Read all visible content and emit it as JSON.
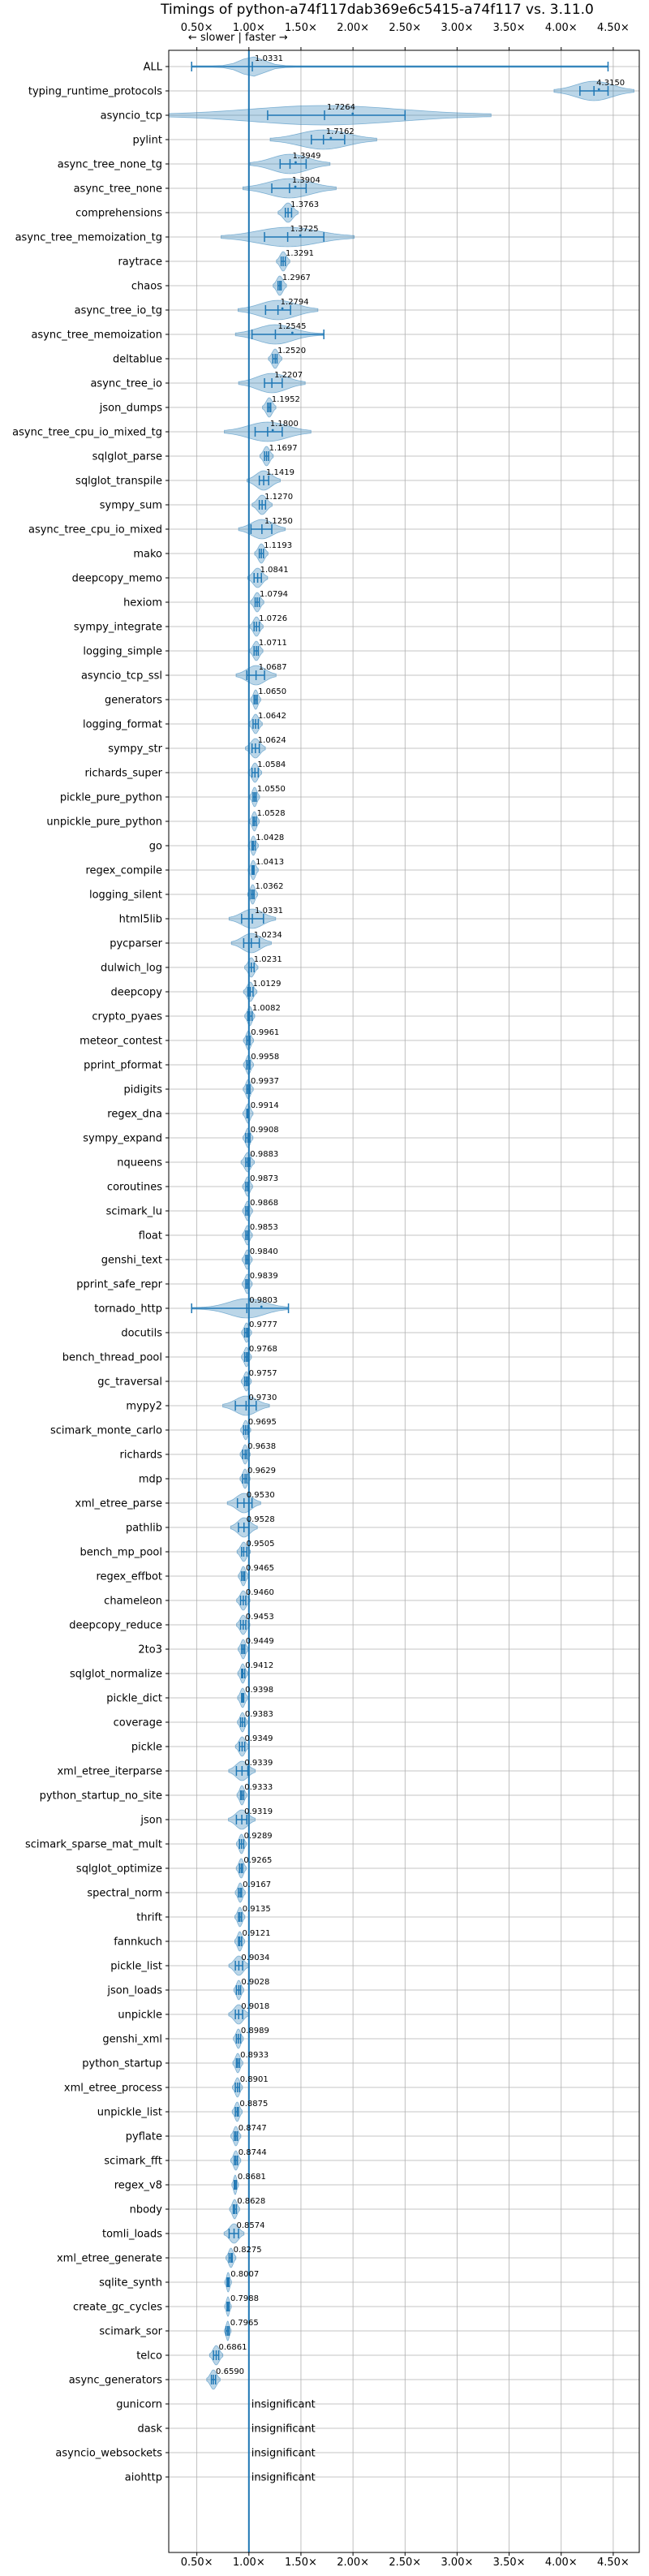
{
  "chart_data": {
    "type": "violin",
    "title": "Timings of python-a74f117dab369e6c5415-a74f117 vs. 3.11.0",
    "direction_hint": "← slower | faster →",
    "x_ticks": [
      "0.50×",
      "1.00×",
      "1.50×",
      "2.00×",
      "2.50×",
      "3.00×",
      "3.50×",
      "4.00×",
      "4.50×"
    ],
    "x_tick_values": [
      0.5,
      1.0,
      1.5,
      2.0,
      2.5,
      3.0,
      3.5,
      4.0,
      4.5
    ],
    "xlim": [
      0.23,
      4.75
    ],
    "reference_line": 1.0,
    "insignificant_label": "insignificant",
    "benchmarks": [
      {
        "name": "ALL",
        "value": 1.0331,
        "label": "1.0331",
        "lo": 0.45,
        "hi": 4.45,
        "spread": 0.08
      },
      {
        "name": "typing_runtime_protocols",
        "value": 4.315,
        "label": "4.3150",
        "lo": 4.18,
        "hi": 4.45,
        "spread": 0.12
      },
      {
        "name": "asyncio_tcp",
        "value": 1.7264,
        "label": "1.7264",
        "lo": 1.18,
        "hi": 2.5,
        "spread": 0.5
      },
      {
        "name": "pylint",
        "value": 1.7162,
        "label": "1.7162",
        "lo": 1.6,
        "hi": 1.92,
        "spread": 0.16
      },
      {
        "name": "async_tree_none_tg",
        "value": 1.3949,
        "label": "1.3949",
        "lo": 1.3,
        "hi": 1.55,
        "spread": 0.12
      },
      {
        "name": "async_tree_none",
        "value": 1.3904,
        "label": "1.3904",
        "lo": 1.22,
        "hi": 1.55,
        "spread": 0.14
      },
      {
        "name": "comprehensions",
        "value": 1.3763,
        "label": "1.3763",
        "lo": 1.35,
        "hi": 1.41,
        "spread": 0.03
      },
      {
        "name": "async_tree_memoization_tg",
        "value": 1.3725,
        "label": "1.3725",
        "lo": 1.15,
        "hi": 1.72,
        "spread": 0.2
      },
      {
        "name": "raytrace",
        "value": 1.3291,
        "label": "1.3291",
        "lo": 1.31,
        "hi": 1.35,
        "spread": 0.02
      },
      {
        "name": "chaos",
        "value": 1.2967,
        "label": "1.2967",
        "lo": 1.28,
        "hi": 1.31,
        "spread": 0.02
      },
      {
        "name": "async_tree_io_tg",
        "value": 1.2794,
        "label": "1.2794",
        "lo": 1.16,
        "hi": 1.4,
        "spread": 0.12
      },
      {
        "name": "async_tree_memoization",
        "value": 1.2545,
        "label": "1.2545",
        "lo": 1.03,
        "hi": 1.72,
        "spread": 0.12
      },
      {
        "name": "deltablue",
        "value": 1.252,
        "label": "1.2520",
        "lo": 1.23,
        "hi": 1.27,
        "spread": 0.02
      },
      {
        "name": "async_tree_io",
        "value": 1.2207,
        "label": "1.2207",
        "lo": 1.15,
        "hi": 1.32,
        "spread": 0.1
      },
      {
        "name": "json_dumps",
        "value": 1.1952,
        "label": "1.1952",
        "lo": 1.18,
        "hi": 1.21,
        "spread": 0.02
      },
      {
        "name": "async_tree_cpu_io_mixed_tg",
        "value": 1.18,
        "label": "1.1800",
        "lo": 1.06,
        "hi": 1.32,
        "spread": 0.13
      },
      {
        "name": "sqlglot_parse",
        "value": 1.1697,
        "label": "1.1697",
        "lo": 1.15,
        "hi": 1.19,
        "spread": 0.02
      },
      {
        "name": "sqlglot_transpile",
        "value": 1.1419,
        "label": "1.1419",
        "lo": 1.1,
        "hi": 1.19,
        "spread": 0.05
      },
      {
        "name": "sympy_sum",
        "value": 1.127,
        "label": "1.1270",
        "lo": 1.1,
        "hi": 1.16,
        "spread": 0.03
      },
      {
        "name": "async_tree_cpu_io_mixed",
        "value": 1.125,
        "label": "1.1250",
        "lo": 1.02,
        "hi": 1.22,
        "spread": 0.07
      },
      {
        "name": "mako",
        "value": 1.1193,
        "label": "1.1193",
        "lo": 1.1,
        "hi": 1.14,
        "spread": 0.02
      },
      {
        "name": "deepcopy_memo",
        "value": 1.0841,
        "label": "1.0841",
        "lo": 1.05,
        "hi": 1.12,
        "spread": 0.03
      },
      {
        "name": "hexiom",
        "value": 1.0794,
        "label": "1.0794",
        "lo": 1.06,
        "hi": 1.1,
        "spread": 0.02
      },
      {
        "name": "sympy_integrate",
        "value": 1.0726,
        "label": "1.0726",
        "lo": 1.05,
        "hi": 1.1,
        "spread": 0.02
      },
      {
        "name": "logging_simple",
        "value": 1.0711,
        "label": "1.0711",
        "lo": 1.05,
        "hi": 1.09,
        "spread": 0.02
      },
      {
        "name": "asyncio_tcp_ssl",
        "value": 1.0687,
        "label": "1.0687",
        "lo": 0.98,
        "hi": 1.15,
        "spread": 0.06
      },
      {
        "name": "generators",
        "value": 1.065,
        "label": "1.0650",
        "lo": 1.05,
        "hi": 1.08,
        "spread": 0.015
      },
      {
        "name": "logging_format",
        "value": 1.0642,
        "label": "1.0642",
        "lo": 1.04,
        "hi": 1.09,
        "spread": 0.02
      },
      {
        "name": "sympy_str",
        "value": 1.0624,
        "label": "1.0624",
        "lo": 1.03,
        "hi": 1.1,
        "spread": 0.03
      },
      {
        "name": "richards_super",
        "value": 1.0584,
        "label": "1.0584",
        "lo": 1.03,
        "hi": 1.09,
        "spread": 0.02
      },
      {
        "name": "pickle_pure_python",
        "value": 1.055,
        "label": "1.0550",
        "lo": 1.04,
        "hi": 1.07,
        "spread": 0.015
      },
      {
        "name": "unpickle_pure_python",
        "value": 1.0528,
        "label": "1.0528",
        "lo": 1.04,
        "hi": 1.07,
        "spread": 0.015
      },
      {
        "name": "go",
        "value": 1.0428,
        "label": "1.0428",
        "lo": 1.03,
        "hi": 1.06,
        "spread": 0.015
      },
      {
        "name": "regex_compile",
        "value": 1.0413,
        "label": "1.0413",
        "lo": 1.03,
        "hi": 1.05,
        "spread": 0.015
      },
      {
        "name": "logging_silent",
        "value": 1.0362,
        "label": "1.0362",
        "lo": 1.02,
        "hi": 1.05,
        "spread": 0.015
      },
      {
        "name": "html5lib",
        "value": 1.0331,
        "label": "1.0331",
        "lo": 0.93,
        "hi": 1.14,
        "spread": 0.07
      },
      {
        "name": "pycparser",
        "value": 1.0234,
        "label": "1.0234",
        "lo": 0.95,
        "hi": 1.1,
        "spread": 0.06
      },
      {
        "name": "dulwich_log",
        "value": 1.0231,
        "label": "1.0231",
        "lo": 1.0,
        "hi": 1.05,
        "spread": 0.02
      },
      {
        "name": "deepcopy",
        "value": 1.0129,
        "label": "1.0129",
        "lo": 0.99,
        "hi": 1.04,
        "spread": 0.02
      },
      {
        "name": "crypto_pyaes",
        "value": 1.0082,
        "label": "1.0082",
        "lo": 0.99,
        "hi": 1.03,
        "spread": 0.015
      },
      {
        "name": "meteor_contest",
        "value": 0.9961,
        "label": "0.9961",
        "lo": 0.98,
        "hi": 1.01,
        "spread": 0.015
      },
      {
        "name": "pprint_pformat",
        "value": 0.9958,
        "label": "0.9958",
        "lo": 0.98,
        "hi": 1.01,
        "spread": 0.015
      },
      {
        "name": "pidigits",
        "value": 0.9937,
        "label": "0.9937",
        "lo": 0.98,
        "hi": 1.01,
        "spread": 0.015
      },
      {
        "name": "regex_dna",
        "value": 0.9914,
        "label": "0.9914",
        "lo": 0.98,
        "hi": 1.0,
        "spread": 0.015
      },
      {
        "name": "sympy_expand",
        "value": 0.9908,
        "label": "0.9908",
        "lo": 0.97,
        "hi": 1.01,
        "spread": 0.015
      },
      {
        "name": "nqueens",
        "value": 0.9883,
        "label": "0.9883",
        "lo": 0.97,
        "hi": 1.01,
        "spread": 0.02
      },
      {
        "name": "coroutines",
        "value": 0.9873,
        "label": "0.9873",
        "lo": 0.97,
        "hi": 1.0,
        "spread": 0.015
      },
      {
        "name": "scimark_lu",
        "value": 0.9868,
        "label": "0.9868",
        "lo": 0.97,
        "hi": 1.0,
        "spread": 0.015
      },
      {
        "name": "float",
        "value": 0.9853,
        "label": "0.9853",
        "lo": 0.97,
        "hi": 1.0,
        "spread": 0.015
      },
      {
        "name": "genshi_text",
        "value": 0.984,
        "label": "0.9840",
        "lo": 0.97,
        "hi": 1.0,
        "spread": 0.015
      },
      {
        "name": "pprint_safe_repr",
        "value": 0.9839,
        "label": "0.9839",
        "lo": 0.97,
        "hi": 1.0,
        "spread": 0.015
      },
      {
        "name": "tornado_http",
        "value": 0.9803,
        "label": "0.9803",
        "lo": 0.45,
        "hi": 1.38,
        "spread": 0.12
      },
      {
        "name": "docutils",
        "value": 0.9777,
        "label": "0.9777",
        "lo": 0.96,
        "hi": 0.99,
        "spread": 0.015
      },
      {
        "name": "bench_thread_pool",
        "value": 0.9768,
        "label": "0.9768",
        "lo": 0.96,
        "hi": 0.99,
        "spread": 0.015
      },
      {
        "name": "gc_traversal",
        "value": 0.9757,
        "label": "0.9757",
        "lo": 0.96,
        "hi": 0.99,
        "spread": 0.015
      },
      {
        "name": "mypy2",
        "value": 0.973,
        "label": "0.9730",
        "lo": 0.87,
        "hi": 1.07,
        "spread": 0.07
      },
      {
        "name": "scimark_monte_carlo",
        "value": 0.9695,
        "label": "0.9695",
        "lo": 0.95,
        "hi": 0.99,
        "spread": 0.015
      },
      {
        "name": "richards",
        "value": 0.9638,
        "label": "0.9638",
        "lo": 0.94,
        "hi": 0.98,
        "spread": 0.015
      },
      {
        "name": "mdp",
        "value": 0.9629,
        "label": "0.9629",
        "lo": 0.94,
        "hi": 0.98,
        "spread": 0.015
      },
      {
        "name": "xml_etree_parse",
        "value": 0.953,
        "label": "0.9530",
        "lo": 0.89,
        "hi": 1.03,
        "spread": 0.05
      },
      {
        "name": "pathlib",
        "value": 0.9528,
        "label": "0.9528",
        "lo": 0.9,
        "hi": 1.0,
        "spread": 0.04
      },
      {
        "name": "bench_mp_pool",
        "value": 0.9505,
        "label": "0.9505",
        "lo": 0.93,
        "hi": 0.98,
        "spread": 0.02
      },
      {
        "name": "regex_effbot",
        "value": 0.9465,
        "label": "0.9465",
        "lo": 0.93,
        "hi": 0.96,
        "spread": 0.015
      },
      {
        "name": "chameleon",
        "value": 0.946,
        "label": "0.9460",
        "lo": 0.92,
        "hi": 0.97,
        "spread": 0.02
      },
      {
        "name": "deepcopy_reduce",
        "value": 0.9453,
        "label": "0.9453",
        "lo": 0.92,
        "hi": 0.97,
        "spread": 0.02
      },
      {
        "name": "2to3",
        "value": 0.9449,
        "label": "0.9449",
        "lo": 0.93,
        "hi": 0.96,
        "spread": 0.015
      },
      {
        "name": "sqlglot_normalize",
        "value": 0.9412,
        "label": "0.9412",
        "lo": 0.93,
        "hi": 0.96,
        "spread": 0.015
      },
      {
        "name": "pickle_dict",
        "value": 0.9398,
        "label": "0.9398",
        "lo": 0.93,
        "hi": 0.95,
        "spread": 0.015
      },
      {
        "name": "coverage",
        "value": 0.9383,
        "label": "0.9383",
        "lo": 0.92,
        "hi": 0.96,
        "spread": 0.015
      },
      {
        "name": "pickle",
        "value": 0.9349,
        "label": "0.9349",
        "lo": 0.91,
        "hi": 0.96,
        "spread": 0.02
      },
      {
        "name": "xml_etree_iterparse",
        "value": 0.9339,
        "label": "0.9339",
        "lo": 0.88,
        "hi": 0.99,
        "spread": 0.04
      },
      {
        "name": "python_startup_no_site",
        "value": 0.9333,
        "label": "0.9333",
        "lo": 0.92,
        "hi": 0.95,
        "spread": 0.015
      },
      {
        "name": "json",
        "value": 0.9319,
        "label": "0.9319",
        "lo": 0.88,
        "hi": 0.98,
        "spread": 0.04
      },
      {
        "name": "scimark_sparse_mat_mult",
        "value": 0.9289,
        "label": "0.9289",
        "lo": 0.91,
        "hi": 0.95,
        "spread": 0.015
      },
      {
        "name": "sqlglot_optimize",
        "value": 0.9265,
        "label": "0.9265",
        "lo": 0.91,
        "hi": 0.94,
        "spread": 0.015
      },
      {
        "name": "spectral_norm",
        "value": 0.9167,
        "label": "0.9167",
        "lo": 0.9,
        "hi": 0.93,
        "spread": 0.015
      },
      {
        "name": "thrift",
        "value": 0.9135,
        "label": "0.9135",
        "lo": 0.9,
        "hi": 0.93,
        "spread": 0.015
      },
      {
        "name": "fannkuch",
        "value": 0.9121,
        "label": "0.9121",
        "lo": 0.9,
        "hi": 0.93,
        "spread": 0.015
      },
      {
        "name": "pickle_list",
        "value": 0.9034,
        "label": "0.9034",
        "lo": 0.87,
        "hi": 0.94,
        "spread": 0.03
      },
      {
        "name": "json_loads",
        "value": 0.9028,
        "label": "0.9028",
        "lo": 0.88,
        "hi": 0.92,
        "spread": 0.015
      },
      {
        "name": "unpickle",
        "value": 0.9018,
        "label": "0.9018",
        "lo": 0.87,
        "hi": 0.94,
        "spread": 0.03
      },
      {
        "name": "genshi_xml",
        "value": 0.8989,
        "label": "0.8989",
        "lo": 0.88,
        "hi": 0.92,
        "spread": 0.015
      },
      {
        "name": "python_startup",
        "value": 0.8933,
        "label": "0.8933",
        "lo": 0.88,
        "hi": 0.91,
        "spread": 0.015
      },
      {
        "name": "xml_etree_process",
        "value": 0.8901,
        "label": "0.8901",
        "lo": 0.87,
        "hi": 0.91,
        "spread": 0.015
      },
      {
        "name": "unpickle_list",
        "value": 0.8875,
        "label": "0.8875",
        "lo": 0.87,
        "hi": 0.9,
        "spread": 0.015
      },
      {
        "name": "pyflate",
        "value": 0.8747,
        "label": "0.8747",
        "lo": 0.86,
        "hi": 0.89,
        "spread": 0.015
      },
      {
        "name": "scimark_fft",
        "value": 0.8744,
        "label": "0.8744",
        "lo": 0.86,
        "hi": 0.89,
        "spread": 0.015
      },
      {
        "name": "regex_v8",
        "value": 0.8681,
        "label": "0.8681",
        "lo": 0.86,
        "hi": 0.88,
        "spread": 0.01
      },
      {
        "name": "nbody",
        "value": 0.8628,
        "label": "0.8628",
        "lo": 0.85,
        "hi": 0.88,
        "spread": 0.015
      },
      {
        "name": "tomli_loads",
        "value": 0.8574,
        "label": "0.8574",
        "lo": 0.81,
        "hi": 0.9,
        "spread": 0.03
      },
      {
        "name": "xml_etree_generate",
        "value": 0.8275,
        "label": "0.8275",
        "lo": 0.81,
        "hi": 0.84,
        "spread": 0.015
      },
      {
        "name": "sqlite_synth",
        "value": 0.8007,
        "label": "0.8007",
        "lo": 0.79,
        "hi": 0.81,
        "spread": 0.01
      },
      {
        "name": "create_gc_cycles",
        "value": 0.7988,
        "label": "0.7988",
        "lo": 0.79,
        "hi": 0.81,
        "spread": 0.01
      },
      {
        "name": "scimark_sor",
        "value": 0.7965,
        "label": "0.7965",
        "lo": 0.78,
        "hi": 0.81,
        "spread": 0.01
      },
      {
        "name": "telco",
        "value": 0.6861,
        "label": "0.6861",
        "lo": 0.66,
        "hi": 0.71,
        "spread": 0.02
      },
      {
        "name": "async_generators",
        "value": 0.659,
        "label": "0.6590",
        "lo": 0.64,
        "hi": 0.68,
        "spread": 0.02
      },
      {
        "name": "gunicorn",
        "value": null,
        "label": "insignificant"
      },
      {
        "name": "dask",
        "value": null,
        "label": "insignificant"
      },
      {
        "name": "asyncio_websockets",
        "value": null,
        "label": "insignificant"
      },
      {
        "name": "aiohttp",
        "value": null,
        "label": "insignificant"
      }
    ]
  }
}
